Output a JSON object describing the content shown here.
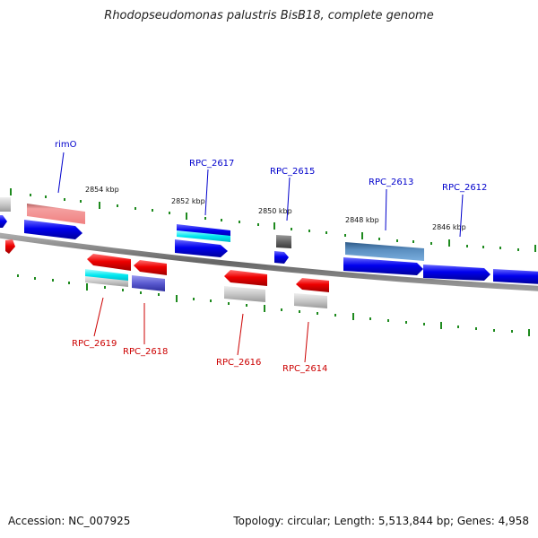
{
  "title": "Rhodopseudomonas palustris BisB18, complete genome",
  "footer": {
    "accession": "Accession: NC_007925",
    "summary": "Topology: circular; Length: 5,513,844 bp; Genes: 4,958"
  },
  "colors": {
    "forward_gene": "#0000ee",
    "reverse_gene": "#ee0000",
    "backbone": "#777777",
    "ticks": "#228b22",
    "forward_label": "#0000cc",
    "reverse_label": "#cc0000"
  },
  "scale_labels": [
    "2854 kbp",
    "2852 kbp",
    "2850 kbp",
    "2848 kbp",
    "2846 kbp"
  ],
  "forward_labels": [
    "rimO",
    "RPC_2617",
    "RPC_2615",
    "RPC_2613",
    "RPC_2612"
  ],
  "reverse_labels": [
    "RPC_2619",
    "RPC_2618",
    "RPC_2616",
    "RPC_2614"
  ]
}
